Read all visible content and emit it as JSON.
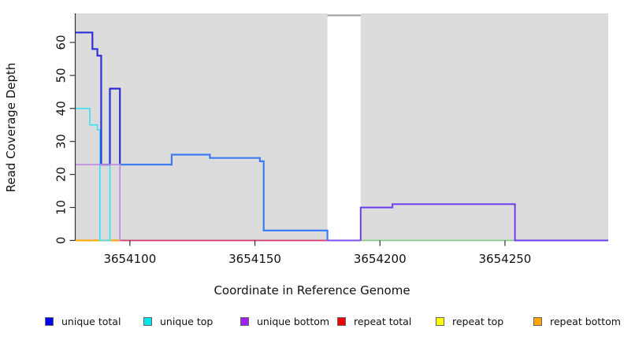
{
  "axes": {
    "x": {
      "label": "Coordinate in Reference Genome",
      "ticks": [
        3654100,
        3654150,
        3654200,
        3654250
      ],
      "min": 3654078.3,
      "max": 3654291.3
    },
    "y": {
      "label": "Read Coverage Depth",
      "ticks": [
        0,
        10,
        20,
        30,
        40,
        50,
        60
      ],
      "min": 0,
      "max": 68.8
    }
  },
  "legend": [
    {
      "label": "unique total",
      "color": "#0000EE"
    },
    {
      "label": "unique top",
      "color": "#00E5EE"
    },
    {
      "label": "unique bottom",
      "color": "#A020F0"
    },
    {
      "label": "repeat total",
      "color": "#EE0000"
    },
    {
      "label": "repeat top",
      "color": "#FFFF00"
    },
    {
      "label": "repeat bottom",
      "color": "#FFA500"
    }
  ],
  "chart_data": {
    "type": "line",
    "style": "step-coverage-plot",
    "plot_background": "#DCDCDC",
    "coverage_gap_x": [
      3654179,
      3654192.3
    ],
    "series": [
      {
        "name": "repeat-bottom-zero-line",
        "color": "#FFA500",
        "width": 2,
        "points": [
          [
            3654078.3,
            0
          ],
          [
            3654096,
            0
          ]
        ]
      },
      {
        "name": "repeat-total-zero-line",
        "color": "#D23A6B",
        "width": 1.8,
        "points": [
          [
            3654096,
            0
          ],
          [
            3654179,
            0
          ]
        ]
      },
      {
        "name": "overlap-zero-line-left",
        "color": "#79C87F",
        "width": 1.6,
        "points": [
          [
            3654088,
            0
          ],
          [
            3654092,
            0
          ]
        ]
      },
      {
        "name": "post-gap-zero-line",
        "color": "#7DC87D",
        "width": 1.5,
        "points": [
          [
            3654192.3,
            0
          ],
          [
            3654254,
            0
          ]
        ]
      },
      {
        "name": "unique-top",
        "color": "#3CE1EE",
        "width": 1.6,
        "points": [
          [
            3654078.3,
            40
          ],
          [
            3654084,
            40
          ],
          [
            3654084,
            35
          ],
          [
            3654087,
            35
          ],
          [
            3654087,
            33.5
          ],
          [
            3654088,
            33.5
          ],
          [
            3654088,
            0
          ],
          [
            3654092,
            0
          ],
          [
            3654092,
            23
          ]
        ]
      },
      {
        "name": "unique-total-left",
        "color": "#2E2ED8",
        "width": 2.2,
        "points": [
          [
            3654078.3,
            63
          ],
          [
            3654085,
            63
          ],
          [
            3654085,
            58
          ],
          [
            3654087,
            58
          ],
          [
            3654087,
            56
          ],
          [
            3654088.5,
            56
          ],
          [
            3654088.5,
            23
          ],
          [
            3654092,
            23
          ],
          [
            3654092,
            46
          ],
          [
            3654096,
            46
          ],
          [
            3654096,
            23
          ]
        ]
      },
      {
        "name": "unique-total-right",
        "color": "#3D7BF2",
        "width": 2.2,
        "points": [
          [
            3654096,
            23
          ],
          [
            3654116.7,
            23
          ],
          [
            3654116.7,
            26
          ],
          [
            3654132,
            26
          ],
          [
            3654132,
            25
          ],
          [
            3654152,
            25
          ],
          [
            3654152,
            24
          ],
          [
            3654153.5,
            24
          ],
          [
            3654153.5,
            3
          ],
          [
            3654179,
            3
          ],
          [
            3654179,
            0
          ]
        ]
      },
      {
        "name": "unique-bottom-left",
        "color": "#BD8FE3",
        "width": 1.8,
        "points": [
          [
            3654078.3,
            23
          ],
          [
            3654096,
            23
          ],
          [
            3654096,
            0
          ]
        ]
      },
      {
        "name": "unique-bottom-gap-zero",
        "color": "#7A52F0",
        "width": 2,
        "points": [
          [
            3654179,
            0
          ],
          [
            3654192.3,
            0
          ]
        ]
      },
      {
        "name": "unique-bottom-right",
        "color": "#6C3DF0",
        "width": 2,
        "points": [
          [
            3654192.3,
            0
          ],
          [
            3654192.3,
            10
          ],
          [
            3654205,
            10
          ],
          [
            3654205,
            11
          ],
          [
            3654254,
            11
          ],
          [
            3654254,
            0
          ],
          [
            3654291.3,
            0
          ]
        ]
      },
      {
        "name": "offscale-total-clipped",
        "color": "#9A9A9A",
        "width": 2,
        "points": [
          [
            3654179,
            68.2
          ],
          [
            3654192.3,
            68.2
          ]
        ]
      }
    ]
  }
}
